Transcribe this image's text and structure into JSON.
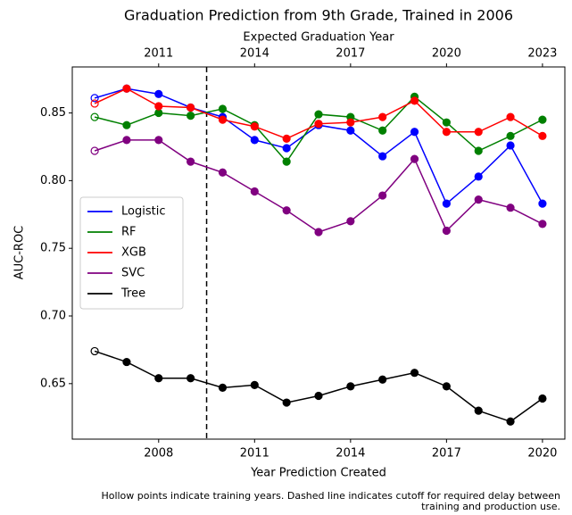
{
  "chart_data": {
    "type": "line",
    "title": "Graduation Prediction from 9th Grade, Trained in 2006",
    "x_label": "Year Prediction Created",
    "x2_label": "Expected Graduation Year",
    "y_label": "AUC-ROC",
    "footnote": [
      "Hollow points indicate training years. Dashed line indicates cutoff for required delay between",
      "training and production use."
    ],
    "x": [
      2006,
      2007,
      2008,
      2009,
      2010,
      2011,
      2012,
      2013,
      2014,
      2015,
      2016,
      2017,
      2018,
      2019,
      2020
    ],
    "xlim": [
      2005.3,
      2020.7
    ],
    "xticks": [
      2008,
      2011,
      2014,
      2017,
      2020
    ],
    "x2lim": [
      2008.3,
      2023.7
    ],
    "x2ticks": [
      2011,
      2014,
      2017,
      2020,
      2023
    ],
    "ylim": [
      0.609,
      0.884
    ],
    "yticks": [
      0.65,
      {
        "value": 0.7,
        "label": "0.70"
      },
      0.75,
      {
        "value": 0.8,
        "label": "0.80"
      },
      0.85
    ],
    "cutoff_x": 2009.5,
    "hollow_x": [
      2006
    ],
    "legend": "center left",
    "series": [
      {
        "name": "Logistic",
        "color": "#0000ff",
        "values": [
          0.861,
          0.868,
          0.864,
          0.854,
          0.847,
          0.83,
          0.824,
          0.841,
          0.837,
          0.818,
          0.836,
          0.783,
          0.803,
          0.826,
          0.783
        ]
      },
      {
        "name": "RF",
        "color": "#008000",
        "values": [
          0.847,
          0.841,
          0.85,
          0.848,
          0.853,
          0.841,
          0.814,
          0.849,
          0.847,
          0.837,
          0.862,
          0.843,
          0.822,
          0.833,
          0.845
        ]
      },
      {
        "name": "XGB",
        "color": "#ff0000",
        "values": [
          0.857,
          0.868,
          0.855,
          0.854,
          0.845,
          0.84,
          0.831,
          0.842,
          0.843,
          0.847,
          0.859,
          0.836,
          0.836,
          0.847,
          0.833
        ]
      },
      {
        "name": "SVC",
        "color": "#800080",
        "values": [
          0.822,
          0.83,
          0.83,
          0.814,
          0.806,
          0.792,
          0.778,
          0.762,
          0.77,
          0.789,
          0.816,
          0.763,
          0.786,
          0.78,
          0.768
        ]
      },
      {
        "name": "Tree",
        "color": "#000000",
        "values": [
          0.674,
          0.666,
          0.654,
          0.654,
          0.647,
          0.649,
          0.636,
          0.641,
          0.648,
          0.653,
          0.658,
          0.648,
          0.63,
          0.622,
          0.639
        ]
      }
    ]
  }
}
